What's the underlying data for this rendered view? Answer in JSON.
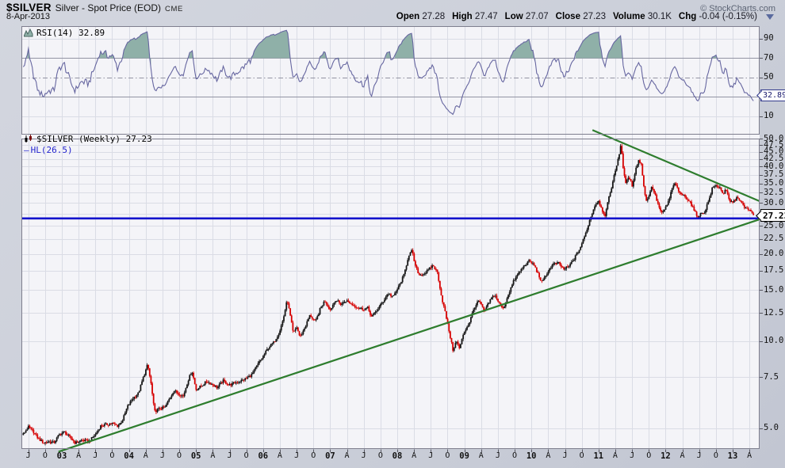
{
  "header": {
    "symbol": "$SILVER",
    "title": "Silver - Spot Price (EOD)",
    "exchange": "CME",
    "date": "8-Apr-2013",
    "copyright": "© StockCharts.com",
    "quote": [
      {
        "label": "Open",
        "value": "27.28"
      },
      {
        "label": "High",
        "value": "27.47"
      },
      {
        "label": "Low",
        "value": "27.07"
      },
      {
        "label": "Close",
        "value": "27.23"
      },
      {
        "label": "Volume",
        "value": "30.1K"
      },
      {
        "label": "Chg",
        "value": "-0.04 (-0.15%)"
      }
    ]
  },
  "rsi_panel": {
    "legend": "RSI(14) 32.89",
    "current_value": "32.89",
    "axis_labels": [
      90,
      70,
      50,
      10
    ],
    "grid_light": [
      90,
      10
    ],
    "grid_strong": [
      70,
      30
    ],
    "grid_dashdot": 50
  },
  "price_panel": {
    "legend": "$SILVER (Weekly) 27.23",
    "overlay_legend": "HL(26.5)",
    "current_value": "27.23",
    "axis_labels": [
      50.0,
      47.5,
      45.0,
      42.5,
      40.0,
      37.5,
      35.0,
      32.5,
      30.0,
      25.0,
      22.5,
      20.0,
      17.5,
      15.0,
      12.5,
      10.0,
      7.5,
      5.0
    ],
    "grid_values": [
      47.5,
      45,
      42.5,
      40,
      37.5,
      35,
      32.5,
      30,
      27.5,
      25,
      22.5,
      20,
      17.5,
      15,
      12.5,
      10,
      7.5,
      5
    ]
  },
  "colors": {
    "candle_up": "#151515",
    "candle_down": "#d60000",
    "trendline": "#2e7d2e",
    "hline": "#1313cc",
    "rsi_line": "#6666a0",
    "rsi_fill": "#8fb0a8",
    "grid": "#dadce5",
    "grid_strong": "#9293a3",
    "panel_border": "#7e7e8e"
  },
  "chart_data": {
    "type": "candlestick",
    "title": "$SILVER (Weekly)",
    "period": "weekly",
    "x_axis": {
      "start": 2002.5,
      "step": 0.25,
      "labels": [
        "J",
        "O",
        "03",
        "A",
        "J",
        "O",
        "04",
        "A",
        "J",
        "O",
        "05",
        "A",
        "J",
        "O",
        "06",
        "A",
        "J",
        "O",
        "07",
        "A",
        "J",
        "O",
        "08",
        "A",
        "J",
        "O",
        "09",
        "A",
        "J",
        "O",
        "10",
        "A",
        "J",
        "O",
        "11",
        "A",
        "J",
        "O",
        "12",
        "A",
        "J",
        "O",
        "13",
        "A"
      ]
    },
    "y_axis": {
      "scale": "log",
      "top_value": 50.0,
      "bottom_value": 4.24
    },
    "rsi_axis": {
      "top_value": 103,
      "bottom_value": -9,
      "overbought": 70,
      "oversold": 30,
      "mid": 50
    },
    "hline_value": 26.5,
    "last_close": 27.23,
    "last_rsi": 32.89,
    "price_anchors": [
      [
        2002.42,
        4.75
      ],
      [
        2002.5,
        5.05
      ],
      [
        2002.58,
        4.85
      ],
      [
        2002.65,
        4.6
      ],
      [
        2002.73,
        4.45
      ],
      [
        2002.8,
        4.5
      ],
      [
        2002.88,
        4.45
      ],
      [
        2002.96,
        4.75
      ],
      [
        2003.04,
        4.85
      ],
      [
        2003.12,
        4.65
      ],
      [
        2003.2,
        4.45
      ],
      [
        2003.3,
        4.55
      ],
      [
        2003.4,
        4.5
      ],
      [
        2003.5,
        4.75
      ],
      [
        2003.58,
        5.1
      ],
      [
        2003.67,
        5.15
      ],
      [
        2003.75,
        5.2
      ],
      [
        2003.83,
        5.1
      ],
      [
        2003.9,
        5.3
      ],
      [
        2003.98,
        5.95
      ],
      [
        2004.06,
        6.35
      ],
      [
        2004.14,
        6.6
      ],
      [
        2004.22,
        7.55
      ],
      [
        2004.28,
        8.3
      ],
      [
        2004.33,
        7.1
      ],
      [
        2004.38,
        5.7
      ],
      [
        2004.46,
        5.85
      ],
      [
        2004.54,
        5.9
      ],
      [
        2004.6,
        6.3
      ],
      [
        2004.67,
        6.75
      ],
      [
        2004.73,
        6.6
      ],
      [
        2004.81,
        6.45
      ],
      [
        2004.88,
        7.3
      ],
      [
        2004.94,
        7.9
      ],
      [
        2005.0,
        6.8
      ],
      [
        2005.08,
        7.0
      ],
      [
        2005.16,
        7.25
      ],
      [
        2005.24,
        7.1
      ],
      [
        2005.32,
        6.9
      ],
      [
        2005.4,
        7.3
      ],
      [
        2005.5,
        7.05
      ],
      [
        2005.6,
        7.2
      ],
      [
        2005.68,
        7.3
      ],
      [
        2005.76,
        7.45
      ],
      [
        2005.84,
        7.7
      ],
      [
        2005.92,
        8.3
      ],
      [
        2006.0,
        8.85
      ],
      [
        2006.08,
        9.5
      ],
      [
        2006.16,
        9.9
      ],
      [
        2006.24,
        10.7
      ],
      [
        2006.3,
        11.9
      ],
      [
        2006.36,
        13.9
      ],
      [
        2006.4,
        12.4
      ],
      [
        2006.45,
        10.6
      ],
      [
        2006.5,
        11.2
      ],
      [
        2006.55,
        10.3
      ],
      [
        2006.62,
        11.1
      ],
      [
        2006.7,
        12.3
      ],
      [
        2006.78,
        11.6
      ],
      [
        2006.85,
        12.9
      ],
      [
        2006.92,
        13.8
      ],
      [
        2007.0,
        12.8
      ],
      [
        2007.08,
        13.9
      ],
      [
        2007.16,
        13.4
      ],
      [
        2007.24,
        13.8
      ],
      [
        2007.32,
        13.4
      ],
      [
        2007.4,
        13.1
      ],
      [
        2007.48,
        12.9
      ],
      [
        2007.56,
        13.0
      ],
      [
        2007.62,
        12.1
      ],
      [
        2007.7,
        12.8
      ],
      [
        2007.78,
        13.6
      ],
      [
        2007.86,
        14.6
      ],
      [
        2007.94,
        14.2
      ],
      [
        2008.02,
        15.4
      ],
      [
        2008.1,
        16.9
      ],
      [
        2008.17,
        19.8
      ],
      [
        2008.22,
        20.5
      ],
      [
        2008.27,
        18.1
      ],
      [
        2008.33,
        16.9
      ],
      [
        2008.4,
        17.1
      ],
      [
        2008.47,
        17.6
      ],
      [
        2008.53,
        18.3
      ],
      [
        2008.6,
        17.2
      ],
      [
        2008.66,
        14.2
      ],
      [
        2008.72,
        12.4
      ],
      [
        2008.78,
        10.6
      ],
      [
        2008.83,
        9.3
      ],
      [
        2008.88,
        10.0
      ],
      [
        2008.93,
        9.4
      ],
      [
        2008.99,
        10.7
      ],
      [
        2009.07,
        11.5
      ],
      [
        2009.15,
        13.1
      ],
      [
        2009.22,
        13.8
      ],
      [
        2009.3,
        12.6
      ],
      [
        2009.38,
        13.8
      ],
      [
        2009.45,
        14.5
      ],
      [
        2009.52,
        13.5
      ],
      [
        2009.58,
        12.9
      ],
      [
        2009.66,
        14.6
      ],
      [
        2009.74,
        16.2
      ],
      [
        2009.82,
        17.3
      ],
      [
        2009.9,
        18.3
      ],
      [
        2009.97,
        18.9
      ],
      [
        2010.04,
        18.3
      ],
      [
        2010.1,
        17.0
      ],
      [
        2010.16,
        15.9
      ],
      [
        2010.24,
        17.3
      ],
      [
        2010.32,
        18.4
      ],
      [
        2010.4,
        18.6
      ],
      [
        2010.48,
        17.7
      ],
      [
        2010.56,
        18.1
      ],
      [
        2010.64,
        19.3
      ],
      [
        2010.72,
        20.8
      ],
      [
        2010.8,
        23.2
      ],
      [
        2010.87,
        26.2
      ],
      [
        2010.94,
        29.2
      ],
      [
        2011.0,
        30.6
      ],
      [
        2011.05,
        28.4
      ],
      [
        2011.1,
        27.2
      ],
      [
        2011.16,
        31.6
      ],
      [
        2011.22,
        36.0
      ],
      [
        2011.27,
        40.5
      ],
      [
        2011.31,
        44.5
      ],
      [
        2011.335,
        48.3
      ],
      [
        2011.37,
        38.5
      ],
      [
        2011.41,
        35.2
      ],
      [
        2011.46,
        36.8
      ],
      [
        2011.5,
        34.2
      ],
      [
        2011.55,
        38.9
      ],
      [
        2011.6,
        42.2
      ],
      [
        2011.64,
        40.5
      ],
      [
        2011.68,
        33.5
      ],
      [
        2011.72,
        30.0
      ],
      [
        2011.76,
        32.5
      ],
      [
        2011.8,
        34.2
      ],
      [
        2011.85,
        31.6
      ],
      [
        2011.9,
        29.0
      ],
      [
        2011.95,
        27.4
      ],
      [
        2012.0,
        28.9
      ],
      [
        2012.05,
        30.6
      ],
      [
        2012.1,
        33.8
      ],
      [
        2012.15,
        35.2
      ],
      [
        2012.19,
        32.6
      ],
      [
        2012.24,
        32.2
      ],
      [
        2012.3,
        31.3
      ],
      [
        2012.36,
        30.4
      ],
      [
        2012.42,
        28.4
      ],
      [
        2012.47,
        26.9
      ],
      [
        2012.52,
        27.4
      ],
      [
        2012.58,
        27.9
      ],
      [
        2012.64,
        30.4
      ],
      [
        2012.7,
        33.9
      ],
      [
        2012.76,
        34.4
      ],
      [
        2012.81,
        33.8
      ],
      [
        2012.86,
        32.3
      ],
      [
        2012.9,
        33.2
      ],
      [
        2012.96,
        30.1
      ],
      [
        2013.02,
        30.4
      ],
      [
        2013.08,
        31.4
      ],
      [
        2013.13,
        30.0
      ],
      [
        2013.18,
        28.7
      ],
      [
        2013.24,
        28.6
      ],
      [
        2013.28,
        27.6
      ],
      [
        2013.31,
        27.23
      ]
    ],
    "trendlines": [
      {
        "name": "rising-support",
        "t1": 2002.95,
        "p1": 4.15,
        "t2": 2013.4,
        "p2": 26.3
      },
      {
        "name": "falling-resistance",
        "t1": 2010.91,
        "p1": 53.5,
        "t2": 2013.4,
        "p2": 30.4
      }
    ]
  }
}
